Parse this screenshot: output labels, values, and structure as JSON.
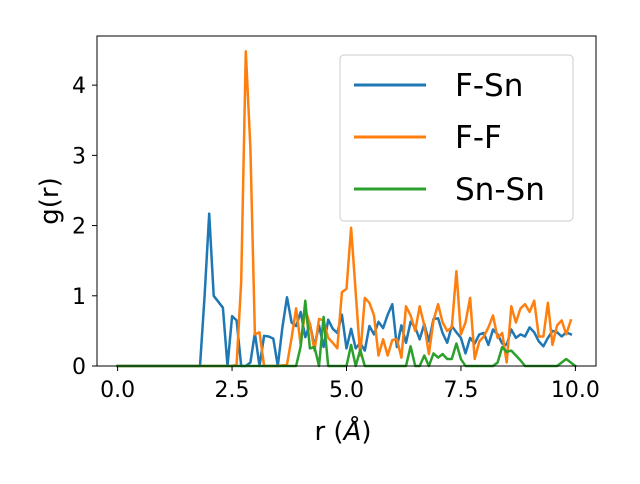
{
  "chart_data": {
    "type": "line",
    "title": "",
    "xlabel": "r (Å)",
    "ylabel": "g(r)",
    "xlim": [
      -0.45,
      10.45
    ],
    "ylim": [
      0,
      4.7
    ],
    "xticks": [
      0.0,
      2.5,
      5.0,
      7.5,
      10.0
    ],
    "xtick_labels": [
      "0.0",
      "2.5",
      "5.0",
      "7.5",
      "10.0"
    ],
    "yticks": [
      0,
      1,
      2,
      3,
      4
    ],
    "ytick_labels": [
      "0",
      "1",
      "2",
      "3",
      "4"
    ],
    "grid": false,
    "legend_position": "top-right",
    "series": [
      {
        "name": "F-Sn",
        "color": "#1f77b4",
        "points": [
          [
            0.0,
            0
          ],
          [
            1.8,
            0
          ],
          [
            1.9,
            1.0
          ],
          [
            2.0,
            2.17
          ],
          [
            2.1,
            1.0
          ],
          [
            2.3,
            0.83
          ],
          [
            2.4,
            0
          ],
          [
            2.5,
            0.71
          ],
          [
            2.6,
            0.65
          ],
          [
            2.7,
            0
          ],
          [
            2.8,
            0
          ],
          [
            2.9,
            0.05
          ],
          [
            3.0,
            0.47
          ],
          [
            3.1,
            0
          ],
          [
            3.2,
            0.43
          ],
          [
            3.3,
            0.42
          ],
          [
            3.4,
            0.39
          ],
          [
            3.5,
            0
          ],
          [
            3.6,
            0.55
          ],
          [
            3.7,
            0.98
          ],
          [
            3.8,
            0.62
          ],
          [
            3.9,
            0.57
          ],
          [
            4.0,
            0.77
          ],
          [
            4.1,
            0.41
          ],
          [
            4.2,
            0.6
          ],
          [
            4.3,
            0.28
          ],
          [
            4.4,
            0.58
          ],
          [
            4.5,
            0.27
          ],
          [
            4.6,
            0.66
          ],
          [
            4.7,
            0.53
          ],
          [
            4.8,
            0.47
          ],
          [
            4.9,
            0.73
          ],
          [
            5.0,
            0.25
          ],
          [
            5.1,
            0.53
          ],
          [
            5.2,
            0.25
          ],
          [
            5.3,
            0.33
          ],
          [
            5.4,
            0.22
          ],
          [
            5.5,
            0.57
          ],
          [
            5.6,
            0.45
          ],
          [
            5.7,
            0.63
          ],
          [
            5.8,
            0.54
          ],
          [
            5.9,
            0.73
          ],
          [
            6.0,
            0.88
          ],
          [
            6.1,
            0.27
          ],
          [
            6.2,
            0.58
          ],
          [
            6.3,
            0.33
          ],
          [
            6.4,
            0.63
          ],
          [
            6.5,
            0.55
          ],
          [
            6.6,
            0.38
          ],
          [
            6.7,
            0.6
          ],
          [
            6.8,
            0.35
          ],
          [
            6.9,
            0.67
          ],
          [
            7.0,
            0.68
          ],
          [
            7.1,
            0.47
          ],
          [
            7.2,
            0.33
          ],
          [
            7.3,
            0.57
          ],
          [
            7.4,
            0.48
          ],
          [
            7.5,
            0.4
          ],
          [
            7.6,
            0.18
          ],
          [
            7.7,
            0.4
          ],
          [
            7.8,
            0.32
          ],
          [
            7.9,
            0.45
          ],
          [
            8.0,
            0.47
          ],
          [
            8.1,
            0.3
          ],
          [
            8.2,
            0.52
          ],
          [
            8.3,
            0.45
          ],
          [
            8.4,
            0.32
          ],
          [
            8.5,
            0.3
          ],
          [
            8.6,
            0.52
          ],
          [
            8.7,
            0.4
          ],
          [
            8.8,
            0.45
          ],
          [
            8.9,
            0.42
          ],
          [
            9.0,
            0.55
          ],
          [
            9.1,
            0.48
          ],
          [
            9.2,
            0.35
          ],
          [
            9.3,
            0.28
          ],
          [
            9.4,
            0.4
          ],
          [
            9.5,
            0.5
          ],
          [
            9.6,
            0.48
          ],
          [
            9.7,
            0.42
          ],
          [
            9.8,
            0.48
          ],
          [
            9.9,
            0.45
          ]
        ]
      },
      {
        "name": "F-F",
        "color": "#ff7f0e",
        "points": [
          [
            0.0,
            0
          ],
          [
            2.5,
            0
          ],
          [
            2.6,
            0.02
          ],
          [
            2.7,
            1.2
          ],
          [
            2.8,
            4.48
          ],
          [
            2.9,
            3.1
          ],
          [
            3.0,
            0.45
          ],
          [
            3.1,
            0.48
          ],
          [
            3.2,
            0
          ],
          [
            3.5,
            0
          ],
          [
            3.7,
            0.02
          ],
          [
            3.8,
            0.4
          ],
          [
            3.9,
            0.82
          ],
          [
            4.0,
            0.3
          ],
          [
            4.1,
            0.8
          ],
          [
            4.2,
            0.6
          ],
          [
            4.3,
            0.22
          ],
          [
            4.4,
            0.67
          ],
          [
            4.5,
            0.65
          ],
          [
            4.6,
            0.4
          ],
          [
            4.7,
            0.33
          ],
          [
            4.8,
            0.25
          ],
          [
            4.9,
            1.05
          ],
          [
            5.0,
            1.1
          ],
          [
            5.1,
            1.97
          ],
          [
            5.2,
            1.05
          ],
          [
            5.3,
            0.15
          ],
          [
            5.4,
            0.97
          ],
          [
            5.5,
            0.9
          ],
          [
            5.6,
            0.72
          ],
          [
            5.7,
            0.15
          ],
          [
            5.8,
            0.38
          ],
          [
            5.9,
            0.15
          ],
          [
            6.0,
            0.37
          ],
          [
            6.1,
            0.38
          ],
          [
            6.2,
            0.12
          ],
          [
            6.3,
            0.85
          ],
          [
            6.4,
            0.72
          ],
          [
            6.5,
            0.5
          ],
          [
            6.6,
            0.85
          ],
          [
            6.7,
            0.58
          ],
          [
            6.8,
            0.17
          ],
          [
            6.9,
            0.65
          ],
          [
            7.0,
            0.88
          ],
          [
            7.1,
            0.62
          ],
          [
            7.2,
            0.5
          ],
          [
            7.3,
            0.55
          ],
          [
            7.4,
            1.35
          ],
          [
            7.5,
            0.45
          ],
          [
            7.6,
            0.62
          ],
          [
            7.7,
            0.97
          ],
          [
            7.8,
            0.1
          ],
          [
            7.9,
            0.35
          ],
          [
            8.0,
            0.42
          ],
          [
            8.1,
            0.55
          ],
          [
            8.2,
            0.72
          ],
          [
            8.3,
            0.4
          ],
          [
            8.4,
            0.47
          ],
          [
            8.5,
            0.05
          ],
          [
            8.6,
            0.85
          ],
          [
            8.7,
            0.62
          ],
          [
            8.8,
            0.82
          ],
          [
            8.9,
            0.88
          ],
          [
            9.0,
            0.77
          ],
          [
            9.1,
            0.93
          ],
          [
            9.2,
            0.42
          ],
          [
            9.3,
            0.42
          ],
          [
            9.4,
            0.9
          ],
          [
            9.5,
            0.3
          ],
          [
            9.6,
            0.58
          ],
          [
            9.7,
            0.65
          ],
          [
            9.8,
            0.45
          ],
          [
            9.9,
            0.65
          ]
        ]
      },
      {
        "name": "Sn-Sn",
        "color": "#2ca02c",
        "points": [
          [
            0.0,
            0
          ],
          [
            3.9,
            0
          ],
          [
            4.0,
            0.28
          ],
          [
            4.1,
            0.93
          ],
          [
            4.2,
            0.25
          ],
          [
            4.3,
            0.27
          ],
          [
            4.4,
            0
          ],
          [
            4.5,
            0.7
          ],
          [
            4.6,
            0
          ],
          [
            5.0,
            0
          ],
          [
            5.1,
            0.3
          ],
          [
            5.2,
            0
          ],
          [
            5.3,
            0.23
          ],
          [
            5.4,
            0
          ],
          [
            6.3,
            0
          ],
          [
            6.4,
            0.28
          ],
          [
            6.5,
            0
          ],
          [
            6.6,
            0
          ],
          [
            6.7,
            0.15
          ],
          [
            6.8,
            0
          ],
          [
            6.9,
            0.18
          ],
          [
            7.0,
            0.12
          ],
          [
            7.1,
            0.17
          ],
          [
            7.2,
            0.1
          ],
          [
            7.3,
            0.1
          ],
          [
            7.4,
            0.32
          ],
          [
            7.5,
            0.1
          ],
          [
            7.6,
            0
          ],
          [
            8.2,
            0
          ],
          [
            8.3,
            0.05
          ],
          [
            8.4,
            0.27
          ],
          [
            8.5,
            0.2
          ],
          [
            8.6,
            0.22
          ],
          [
            8.7,
            0.15
          ],
          [
            8.8,
            0.08
          ],
          [
            8.9,
            0
          ],
          [
            9.0,
            0
          ],
          [
            9.6,
            0
          ],
          [
            9.7,
            0.05
          ],
          [
            9.8,
            0.1
          ],
          [
            9.9,
            0.05
          ],
          [
            10.0,
            0
          ]
        ]
      }
    ]
  }
}
